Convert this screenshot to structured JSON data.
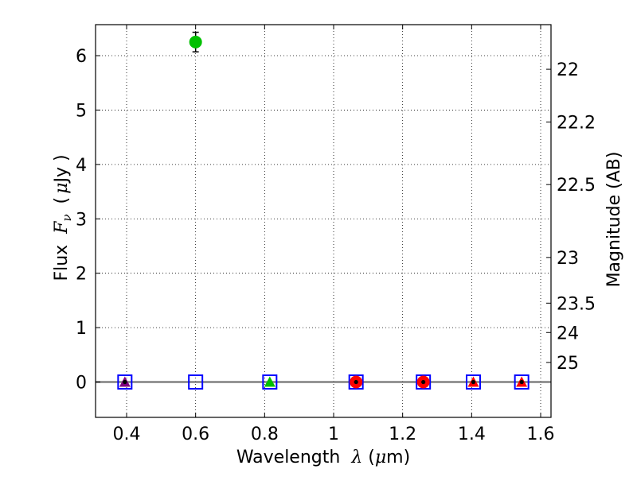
{
  "chart_data": {
    "type": "scatter",
    "xlabel": {
      "prefix": "Wavelength",
      "symbol": "λ",
      "unit_open": " (",
      "unit_mu": "μ",
      "unit_rest": "m)"
    },
    "ylabel": {
      "prefix": "Flux",
      "symbol": "F",
      "subscript": "ν",
      "unit_open": " (",
      "unit_mu": "μ",
      "unit_rest": "Jy )"
    },
    "y2label": "Magnitude (AB)",
    "xlim": [
      0.31,
      1.63
    ],
    "ylim": [
      -0.65,
      6.57
    ],
    "grid": true,
    "x_ticks": [
      0.4,
      0.6,
      0.8,
      1.0,
      1.2,
      1.4,
      1.6
    ],
    "x_tick_labels": [
      "0.4",
      "0.6",
      "0.8",
      "1",
      "1.2",
      "1.4",
      "1.6"
    ],
    "y_ticks": [
      0,
      1,
      2,
      3,
      4,
      5,
      6
    ],
    "y_tick_labels": [
      "0",
      "1",
      "2",
      "3",
      "4",
      "5",
      "6"
    ],
    "y2_ticks": [
      {
        "label": "22",
        "flux": 5.75
      },
      {
        "label": "22.2",
        "flux": 4.78
      },
      {
        "label": "22.5",
        "flux": 3.63
      },
      {
        "label": "23",
        "flux": 2.29
      },
      {
        "label": "23.5",
        "flux": 1.45
      },
      {
        "label": "24",
        "flux": 0.91
      },
      {
        "label": "25",
        "flux": 0.36
      }
    ],
    "hline": {
      "y": 0,
      "color": "#808080"
    },
    "series": [
      {
        "name": "detection",
        "marker": "circle",
        "color": "#00c000",
        "points": [
          {
            "x": 0.6,
            "y": 6.25,
            "yerr": 0.18
          }
        ]
      },
      {
        "name": "open-squares",
        "marker": "square-open",
        "color": "#0000ff",
        "points": [
          {
            "x": 0.395,
            "y": 0
          },
          {
            "x": 0.6,
            "y": 0
          },
          {
            "x": 0.815,
            "y": 0
          },
          {
            "x": 1.065,
            "y": 0
          },
          {
            "x": 1.26,
            "y": 0
          },
          {
            "x": 1.405,
            "y": 0
          },
          {
            "x": 1.545,
            "y": 0
          }
        ]
      },
      {
        "name": "red-circles",
        "marker": "circle",
        "color": "#ff0000",
        "points": [
          {
            "x": 1.065,
            "y": 0
          },
          {
            "x": 1.26,
            "y": 0
          }
        ]
      },
      {
        "name": "purple-triangle",
        "marker": "triangle",
        "color": "#800080",
        "points": [
          {
            "x": 0.395,
            "y": 0
          }
        ]
      },
      {
        "name": "green-triangle",
        "marker": "triangle",
        "color": "#00c000",
        "points": [
          {
            "x": 0.815,
            "y": 0
          }
        ]
      },
      {
        "name": "red-triangles",
        "marker": "triangle",
        "color": "#ff0000",
        "points": [
          {
            "x": 1.405,
            "y": 0
          },
          {
            "x": 1.545,
            "y": 0
          }
        ]
      },
      {
        "name": "black-dots",
        "marker": "dot",
        "color": "#000000",
        "points": [
          {
            "x": 0.395,
            "y": 0
          },
          {
            "x": 1.065,
            "y": 0
          },
          {
            "x": 1.26,
            "y": 0
          },
          {
            "x": 1.405,
            "y": 0
          },
          {
            "x": 1.545,
            "y": 0
          }
        ]
      }
    ]
  }
}
